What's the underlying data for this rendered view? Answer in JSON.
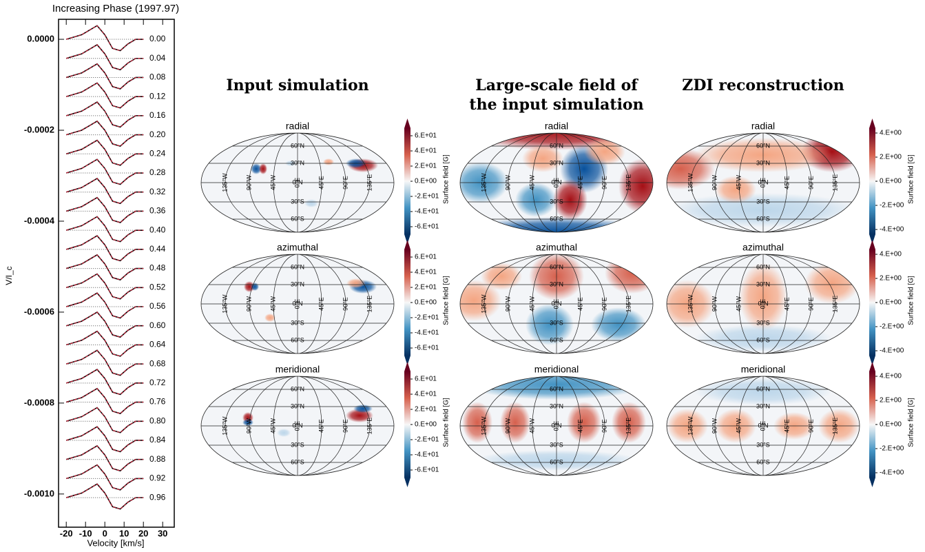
{
  "chart_data": [
    {
      "type": "line",
      "title": "Increasing Phase (1997.97)",
      "xlabel": "Velocity [km/s]",
      "ylabel": "V/I_c",
      "xlim": [
        -24,
        36
      ],
      "xticks": [
        -20,
        -10,
        0,
        10,
        20,
        30
      ],
      "ylim": [
        -0.001073,
        4.4e-05
      ],
      "yticks": [
        {
          "value": 0,
          "label": "0.0000"
        },
        {
          "value": -0.0002,
          "label": "-0.0002"
        },
        {
          "value": -0.0004,
          "label": "-0.0004"
        },
        {
          "value": -0.0006,
          "label": "-0.0006"
        },
        {
          "value": -0.0008,
          "label": "-0.0008"
        },
        {
          "value": -0.001,
          "label": "-0.0010"
        }
      ],
      "phases": [
        "0.00",
        "0.04",
        "0.08",
        "0.12",
        "0.16",
        "0.20",
        "0.24",
        "0.28",
        "0.32",
        "0.36",
        "0.40",
        "0.44",
        "0.48",
        "0.52",
        "0.56",
        "0.60",
        "0.64",
        "0.68",
        "0.72",
        "0.76",
        "0.80",
        "0.84",
        "0.88",
        "0.92",
        "0.96"
      ],
      "offsets": [
        0,
        -4.2e-05,
        -8.4e-05,
        -0.000126,
        -0.000168,
        -0.00021,
        -0.000252,
        -0.000294,
        -0.000336,
        -0.000378,
        -0.00042,
        -0.000462,
        -0.000504,
        -0.000546,
        -0.000588,
        -0.00063,
        -0.000672,
        -0.000714,
        -0.000756,
        -0.000798,
        -0.00084,
        -0.000882,
        -0.000924,
        -0.000966,
        -0.001008
      ],
      "profile": {
        "x": [
          -20,
          -16,
          -12,
          -8,
          -4,
          0,
          4,
          8,
          12,
          16,
          20
        ],
        "values": [
          0,
          5e-06,
          1e-05,
          2e-05,
          3e-05,
          1e-05,
          -2e-05,
          -2.5e-05,
          -1e-05,
          0,
          0
        ]
      },
      "colors": {
        "observed": "#000000",
        "model": "#e0203a"
      }
    },
    {
      "type": "map",
      "columns": [
        {
          "title": [
            "Input simulation"
          ],
          "colorbar": {
            "label": "Surface field [G]",
            "clim": [
              -70,
              70
            ],
            "ticks": [
              {
                "value": 60,
                "label": "6.E+01"
              },
              {
                "value": 40,
                "label": "4.E+01"
              },
              {
                "value": 20,
                "label": "2.E+01"
              },
              {
                "value": 0,
                "label": "0.E+00"
              },
              {
                "value": -20,
                "label": "-2.E+01"
              },
              {
                "value": -40,
                "label": "-4.E+01"
              },
              {
                "value": -60,
                "label": "-6.E+01"
              }
            ]
          }
        },
        {
          "title": [
            "Large-scale field of",
            "the input simulation"
          ]
        },
        {
          "title": [
            "ZDI reconstruction"
          ],
          "colorbar": {
            "label": "Surface field [G]",
            "clim": [
              -4.4,
              4.4
            ],
            "ticks": [
              {
                "value": 4,
                "label": "4.E+00"
              },
              {
                "value": 2,
                "label": "2.E+00"
              },
              {
                "value": 0,
                "label": "0.E+00"
              },
              {
                "value": -2,
                "label": "-2.E+00"
              },
              {
                "value": -4,
                "label": "-4.E+00"
              }
            ]
          }
        }
      ],
      "rows": [
        "radial",
        "azimuthal",
        "meridional"
      ],
      "lat_labels": [
        "60°N",
        "30°N",
        "0°N",
        "30°S",
        "60°S"
      ],
      "lon_labels": [
        "135°W",
        "90°W",
        "45°W",
        "0°E",
        "45°E",
        "90°E",
        "135°E"
      ]
    }
  ]
}
